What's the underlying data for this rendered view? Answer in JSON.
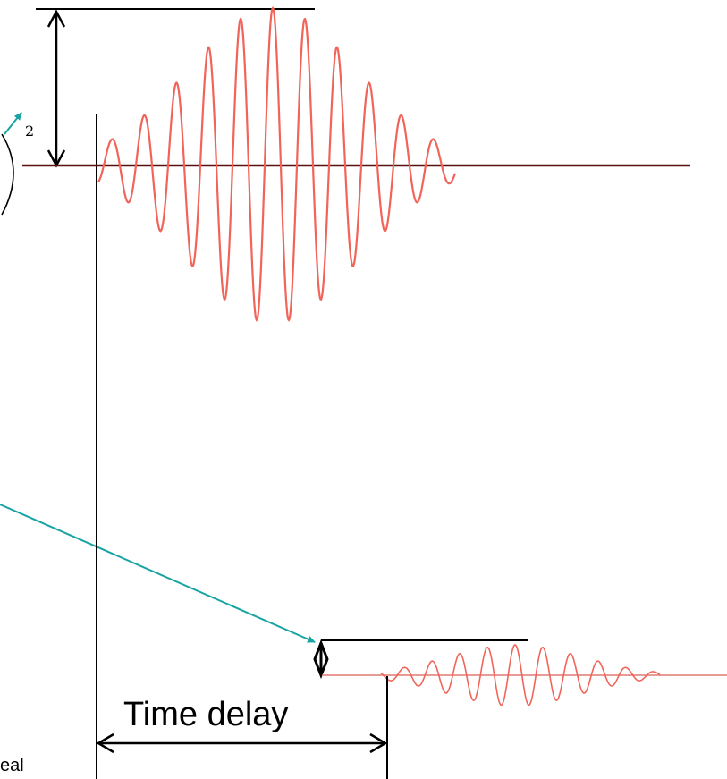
{
  "labels": {
    "time_delay": "Time delay",
    "exponent": "2",
    "cut_text": "eal"
  },
  "colors": {
    "waveform": "#f0645a",
    "baseline_top": "#5a1010",
    "baseline_bottom": "#e07a72",
    "pointer": "#19a3a3",
    "ink": "#000000"
  }
}
